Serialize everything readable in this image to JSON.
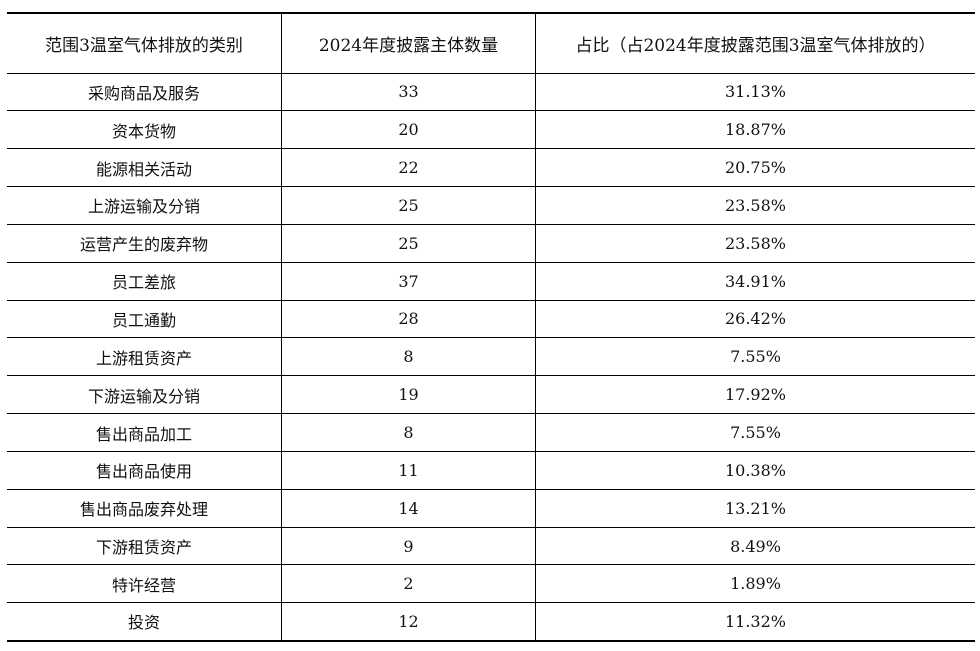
{
  "chart_data": {
    "type": "table",
    "columns": [
      "范围3温室气体排放的类别",
      "2024年度披露主体数量",
      "占比（占2024年度披露范围3温室气体排放的）"
    ],
    "rows": [
      [
        "采购商品及服务",
        "33",
        "31.13%"
      ],
      [
        "资本货物",
        "20",
        "18.87%"
      ],
      [
        "能源相关活动",
        "22",
        "20.75%"
      ],
      [
        "上游运输及分销",
        "25",
        "23.58%"
      ],
      [
        "运营产生的废弃物",
        "25",
        "23.58%"
      ],
      [
        "员工差旅",
        "37",
        "34.91%"
      ],
      [
        "员工通勤",
        "28",
        "26.42%"
      ],
      [
        "上游租赁资产",
        "8",
        "7.55%"
      ],
      [
        "下游运输及分销",
        "19",
        "17.92%"
      ],
      [
        "售出商品加工",
        "8",
        "7.55%"
      ],
      [
        "售出商品使用",
        "11",
        "10.38%"
      ],
      [
        "售出商品废弃处理",
        "14",
        "13.21%"
      ],
      [
        "下游租赁资产",
        "9",
        "8.49%"
      ],
      [
        "特许经营",
        "2",
        "1.89%"
      ],
      [
        "投资",
        "12",
        "11.32%"
      ]
    ]
  }
}
